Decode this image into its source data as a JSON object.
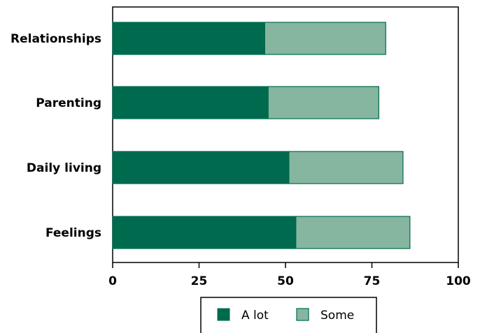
{
  "chart_data": {
    "type": "bar",
    "orientation": "horizontal",
    "stacked": true,
    "categories": [
      "Relationships",
      "Parenting",
      "Daily living",
      "Feelings"
    ],
    "series": [
      {
        "name": "A lot",
        "values": [
          44,
          45,
          51,
          53
        ],
        "color": "#006a4e"
      },
      {
        "name": "Some",
        "values": [
          35,
          32,
          33,
          33
        ],
        "color": "#86b6a0"
      }
    ],
    "xlim": [
      0,
      100
    ],
    "xticks": [
      "0",
      "25",
      "50",
      "75",
      "100"
    ],
    "grid": false,
    "legend_position": "bottom"
  }
}
